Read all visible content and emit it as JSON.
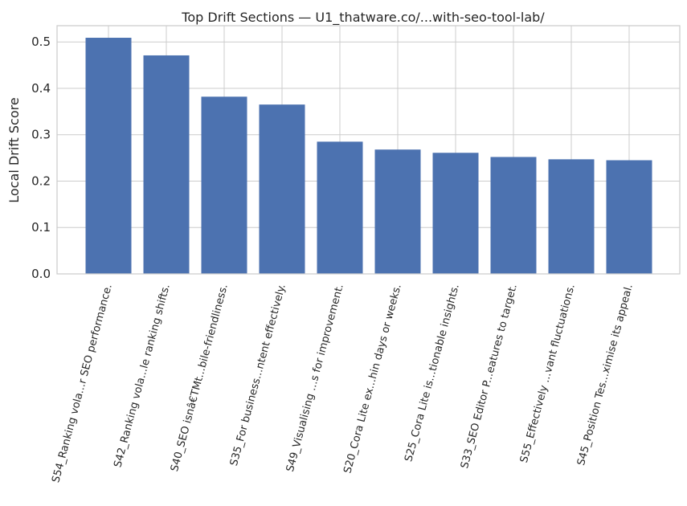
{
  "chart_data": {
    "type": "bar",
    "title": "Top Drift Sections — U1_thatware.co/...with-seo-tool-lab/",
    "xlabel": "",
    "ylabel": "Local Drift Score",
    "ylim": [
      0,
      0.535
    ],
    "yticks": [
      "0.0",
      "0.1",
      "0.2",
      "0.3",
      "0.4",
      "0.5"
    ],
    "grid": true,
    "bar_color": "#4c72b0",
    "categories": [
      "S54_Ranking vola...r SEO performance.",
      "S42_Ranking vola...le ranking shifts.",
      "S40_SEO isnâ€TMt...bile-friendliness.",
      "S35_For business...ntent effectively.",
      "S49_Visualising ...s for improvement.",
      "S20_Cora Lite ex...hin days or weeks.",
      "S25_Cora Lite is...tionable insights.",
      "S33_SEO Editor P...eatures to target.",
      "S55_Effectively ...vant fluctuations.",
      "S45_Position Tes...ximise its appeal."
    ],
    "values": [
      0.509,
      0.471,
      0.382,
      0.365,
      0.285,
      0.268,
      0.261,
      0.252,
      0.247,
      0.245
    ]
  }
}
